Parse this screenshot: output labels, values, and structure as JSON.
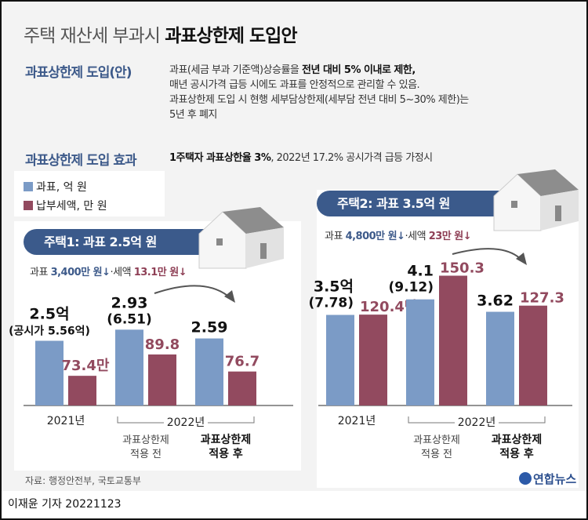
{
  "title": {
    "light": "주택 재산세 부과시",
    "bold": "과표상한제 도입안"
  },
  "proposal": {
    "heading": "과표상한제 도입(안)",
    "line1_plain": "과표(세금 부과 기준액)상승률을 ",
    "line1_bold": "전년 대비 5% 이내로 제한,",
    "line2": "매년 공시가격 급등 시에도 과표를 안정적으로 관리할 수 있음.",
    "line3": "과표상한제 도입 시 현행 세부담상한제(세부담 전년 대비 5~30% 제한)는",
    "line4": "5년 후 폐지"
  },
  "effect": {
    "heading": "과표상한제 도입 효과",
    "bold": "1주택자 과표상한율 3%",
    "plain": ", 2022년 17.2% 공시가격 급등 가정시"
  },
  "legend": [
    {
      "label": "과표, 억 원",
      "color": "#7b9bc6"
    },
    {
      "label": "납부세액, 만 원",
      "color": "#924a5f"
    }
  ],
  "house1": {
    "pill": "주택1: 과표 2.5억 원",
    "change_prefix": "과표 ",
    "change_base": "3,400만 원↓",
    "change_mid": "·세액 ",
    "change_tax": "13.1만 원↓"
  },
  "house2": {
    "pill": "주택2: 과표 3.5억 원",
    "change_prefix": "과표 ",
    "change_base": "4,800만 원↓",
    "change_mid": "·세액 ",
    "change_tax": "23만 원↓"
  },
  "chart_data": [
    {
      "type": "bar",
      "title": "주택1: 과표 2.5억 원",
      "categories": [
        "2021년",
        "과표상한제 적용 전",
        "과표상한제 적용 후"
      ],
      "group_label": "2022년",
      "series": [
        {
          "name": "과표, 억 원",
          "values": [
            2.5,
            2.93,
            2.59
          ],
          "labels": [
            "2.5억",
            "2.93",
            "2.59"
          ],
          "sublabels": [
            "(공시가 5.56억)",
            "(6.51)",
            ""
          ]
        },
        {
          "name": "납부세액, 만 원",
          "values": [
            73.4,
            89.8,
            76.7
          ],
          "labels": [
            "73.4만",
            "89.8",
            "76.7"
          ]
        }
      ]
    },
    {
      "type": "bar",
      "title": "주택2: 과표 3.5억 원",
      "categories": [
        "2021년",
        "과표상한제 적용 전",
        "과표상한제 적용 후"
      ],
      "group_label": "2022년",
      "series": [
        {
          "name": "과표, 억 원",
          "values": [
            3.5,
            4.1,
            3.62
          ],
          "labels": [
            "3.5억",
            "4.1",
            "3.62"
          ],
          "sublabels": [
            "(7.78)",
            "(9.12)",
            ""
          ]
        },
        {
          "name": "납부세액, 만 원",
          "values": [
            120.4,
            150.3,
            127.3
          ],
          "labels": [
            "120.4만",
            "150.3",
            "127.3"
          ]
        }
      ]
    }
  ],
  "category_lines": {
    "before": [
      "과표상한제",
      "적용 전"
    ],
    "after": [
      "과표상한제",
      "적용 후"
    ]
  },
  "source": "자료: 행정안전부, 국토교통부",
  "logo": "연합뉴스",
  "byline": "이재윤 기자  20221123"
}
